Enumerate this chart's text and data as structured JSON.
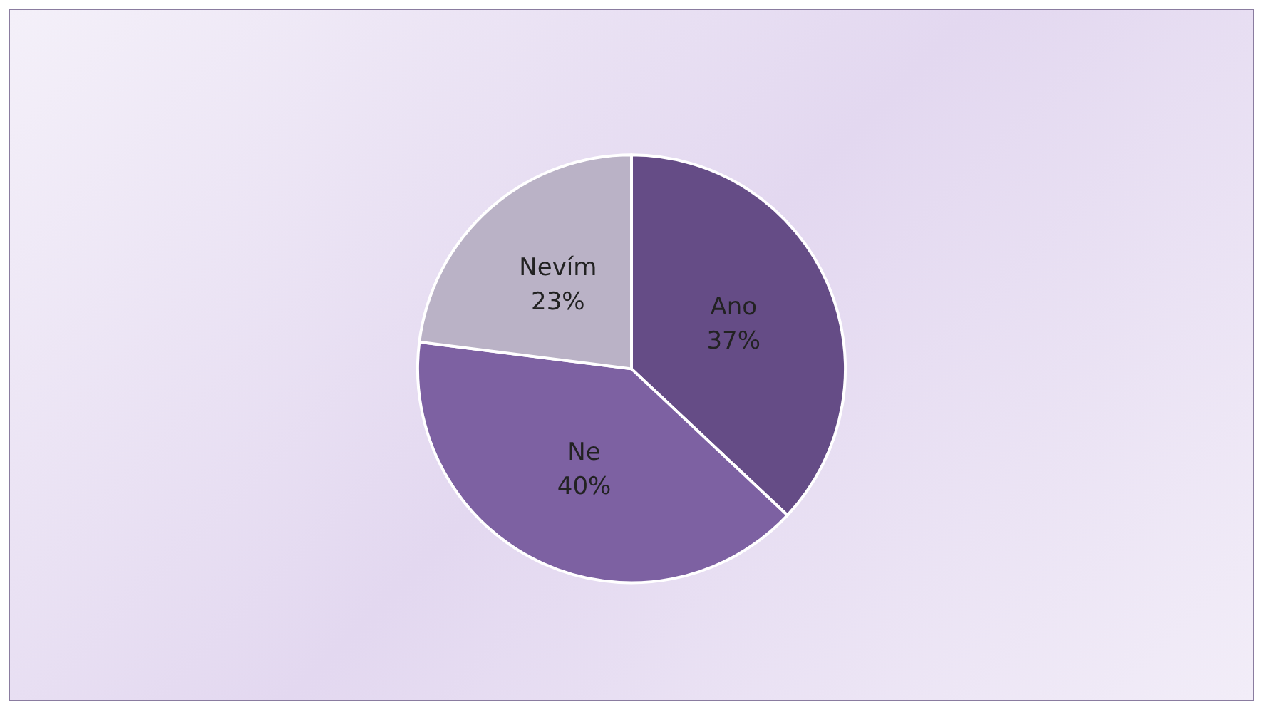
{
  "chart_data": {
    "type": "pie",
    "categories": [
      "Ano",
      "Ne",
      "Nevím"
    ],
    "values": [
      37,
      40,
      23
    ],
    "value_labels": [
      "37%",
      "40%",
      "23%"
    ],
    "colors": [
      "#654c86",
      "#7d61a2",
      "#bab2c6"
    ],
    "legend": false
  }
}
